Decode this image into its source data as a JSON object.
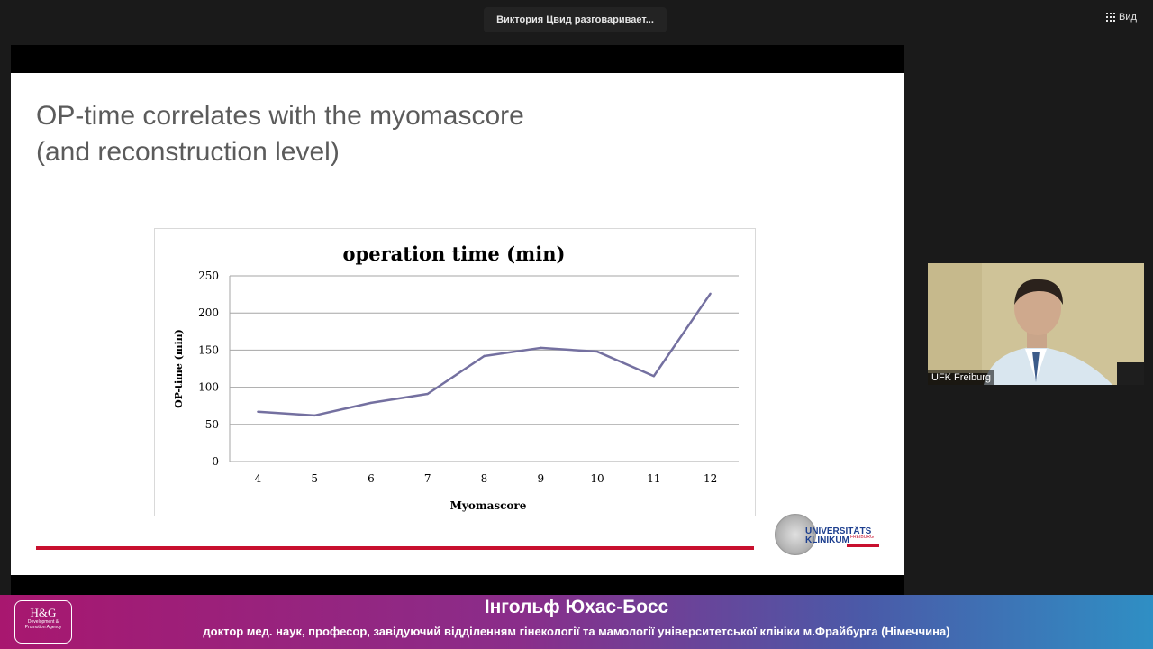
{
  "topbar": {
    "speaker_status": "Виктория Цвид разговаривает...",
    "view_label": "Вид"
  },
  "slide": {
    "title_line1": "OP-time correlates with the myomascore",
    "title_line2": "(and reconstruction level)",
    "logo": {
      "line1": "UNIVERSITÄTS",
      "line2": "KLINIKUM",
      "sub": "FREIBURG"
    }
  },
  "chart_data": {
    "type": "line",
    "title": "operation time (min)",
    "xlabel": "Myomascore",
    "ylabel": "OP-time (min)",
    "categories": [
      "4",
      "5",
      "6",
      "7",
      "8",
      "9",
      "10",
      "11",
      "12"
    ],
    "values": [
      67,
      62,
      79,
      91,
      142,
      153,
      148,
      115,
      226
    ],
    "ylim": [
      0,
      250
    ],
    "yticks": [
      0,
      50,
      100,
      150,
      200,
      250
    ],
    "grid": true,
    "line_color": "#7470a0"
  },
  "video_tile": {
    "name": "UFK Freiburg"
  },
  "lower_third": {
    "logo_title": "H&G",
    "logo_sub1": "Development &",
    "logo_sub2": "Promotion Agency",
    "name": "Інгольф Юхас-Босс",
    "role": "доктор мед. наук, професор, завідуючий відділенням гінекології та мамології університетської клініки м.Фрайбурга (Німеччина)"
  },
  "colors": {
    "accent_red": "#c8102e",
    "uni_blue": "#1d3f8f"
  }
}
